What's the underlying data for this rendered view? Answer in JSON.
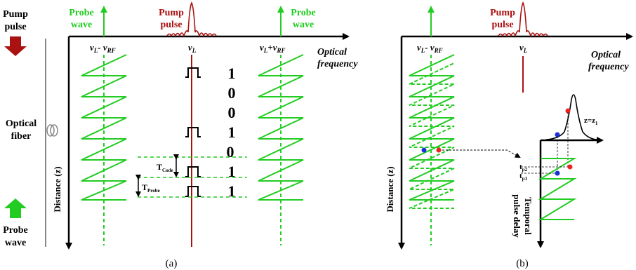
{
  "colors": {
    "green": "#22cc22",
    "red": "#aa1111",
    "black": "#000000",
    "gray": "#888888",
    "blue": "#1a2fd6",
    "dot_red": "#ee2222"
  },
  "left_labels": {
    "pump_pulse": [
      "Pump",
      "pulse"
    ],
    "optical_fiber": [
      "Optical",
      "fiber"
    ],
    "probe_wave": [
      "Probe",
      "wave"
    ]
  },
  "panel_a": {
    "caption": "(a)",
    "probe_wave_left": [
      "Probe",
      "wave"
    ],
    "probe_wave_right": [
      "Probe",
      "wave"
    ],
    "pump_pulse": [
      "Pump",
      "pulse"
    ],
    "freq_left": {
      "base": "ν",
      "sub1": "L",
      "mid": "- ν",
      "sub2": "RF"
    },
    "freq_center": {
      "base": "ν",
      "sub1": "L"
    },
    "freq_right": {
      "base": "ν",
      "sub1": "L",
      "mid": "+ν",
      "sub2": "RF"
    },
    "x_axis_label": [
      "Optical",
      "frequency"
    ],
    "y_axis_label": "Distance (z)",
    "code_bits": [
      "1",
      "0",
      "0",
      "1",
      "0",
      "1",
      "1"
    ],
    "t_code": {
      "base": "T",
      "sub": "Code"
    },
    "t_probe": {
      "base": "T",
      "sub": "Probe"
    }
  },
  "panel_b": {
    "caption": "(b)",
    "pump_pulse": [
      "Pump",
      "pulse"
    ],
    "freq_left": {
      "base": "ν",
      "sub1": "L",
      "mid": "- ν",
      "sub2": "RF"
    },
    "freq_center": {
      "base": "ν",
      "sub1": "L"
    },
    "x_axis_label": [
      "Optical",
      "frequency"
    ],
    "y_axis_label": "Distance (z)",
    "z_label": {
      "base": "z=z",
      "sub": "1"
    },
    "tp2": {
      "base": "t",
      "sub": "p2"
    },
    "tp1": {
      "base": "t",
      "sub": "p1"
    },
    "inset_y_label": [
      "Temporal",
      "pulse delay"
    ]
  }
}
